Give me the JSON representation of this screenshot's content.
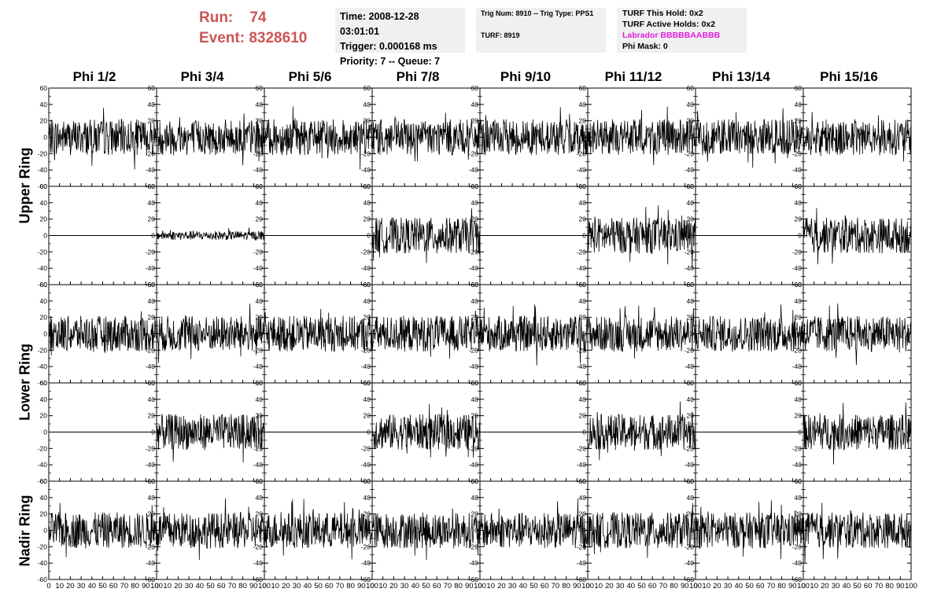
{
  "header": {
    "run_label": "Run:",
    "run_value": "74",
    "event_label": "Event:",
    "event_value": "8328610",
    "time": "Time: 2008-12-28 03:01:01",
    "trigger": "Trigger: 0.000168 ms",
    "priority": "Priority: 7 -- Queue: 7",
    "trig_num": "Trig Num: 8910 -- Trig Type: PPS1",
    "turf": "TURF: 8919",
    "turf_hold": "TURF This Hold: 0x2",
    "turf_active": "TURF Active Holds: 0x2",
    "labrador": "Labrador BBBBBAABBB",
    "phi_mask": "Phi Mask: 0"
  },
  "columns": [
    "Phi 1/2",
    "Phi 3/4",
    "Phi 5/6",
    "Phi 7/8",
    "Phi 9/10",
    "Phi 11/12",
    "Phi 13/14",
    "Phi 15/16"
  ],
  "rings": [
    "Upper Ring",
    "Lower Ring",
    "Nadir Ring"
  ],
  "y_ticks": [
    "60",
    "40",
    "20",
    "0",
    "-20",
    "-40",
    "-60"
  ],
  "x_ticks": [
    "0",
    "10",
    "20",
    "30",
    "40",
    "50",
    "60",
    "70",
    "80",
    "90",
    "100"
  ],
  "chart_data": {
    "type": "line",
    "title": "",
    "xlabel": "",
    "ylabel": "",
    "xlim": [
      0,
      100
    ],
    "ylim": [
      -60,
      60
    ],
    "rows": 5,
    "cols": 8,
    "panel_activity": [
      [
        1,
        1,
        1,
        1,
        1,
        1,
        1,
        1
      ],
      [
        0,
        0.25,
        0,
        1,
        0,
        1,
        0,
        1
      ],
      [
        1,
        1,
        1,
        1,
        1,
        1,
        1,
        1
      ],
      [
        0,
        1,
        0,
        1,
        0,
        1,
        0,
        1
      ],
      [
        1,
        1,
        1,
        1,
        1,
        1,
        1,
        1
      ]
    ],
    "noise_amplitude": 22
  },
  "colors": {
    "trace": "#000000",
    "title_red": "#cc5555",
    "magenta": "#e020e0",
    "panel_bg": "#f0f0f0"
  }
}
